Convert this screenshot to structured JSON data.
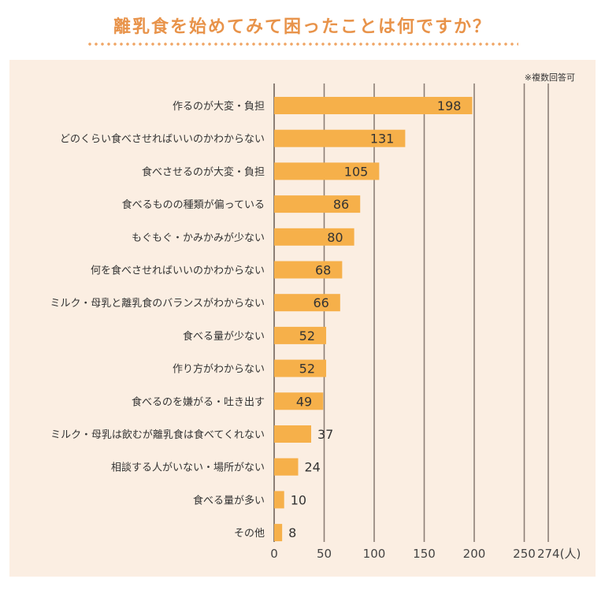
{
  "header": {
    "title": "離乳食を始めてみて困ったことは何ですか？",
    "note": "※複数回答可"
  },
  "colors": {
    "bar": "#f6b04a",
    "grid": "#8c7f76",
    "title": "#e8934a",
    "panel": "#fbeee2"
  },
  "chart_data": {
    "type": "bar",
    "orientation": "horizontal",
    "categories": [
      "作るのが大変・負担",
      "どのくらい食べさせればいいのかわからない",
      "食べさせるのが大変・負担",
      "食べるものの種類が偏っている",
      "もぐもぐ・かみかみが少ない",
      "何を食べさせればいいのかわからない",
      "ミルク・母乳と離乳食のバランスがわからない",
      "食べる量が少ない",
      "作り方がわからない",
      "食べるのを嫌がる・吐き出す",
      "ミルク・母乳は飲むが離乳食は食べてくれない",
      "相談する人がいない・場所がない",
      "食べる量が多い",
      "その他"
    ],
    "values": [
      198,
      131,
      105,
      86,
      80,
      68,
      66,
      52,
      52,
      49,
      37,
      24,
      10,
      8
    ],
    "x_ticks": [
      "0",
      "50",
      "100",
      "150",
      "200",
      "250",
      "274(人)"
    ],
    "xlim": [
      0,
      274
    ],
    "grid": true
  }
}
